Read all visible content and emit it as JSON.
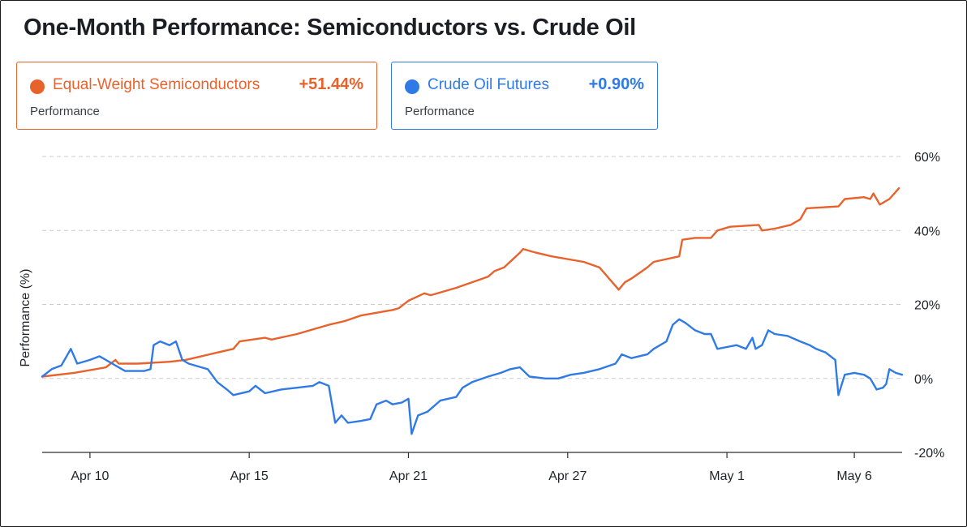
{
  "title": "One-Month Performance: Semiconductors vs. Crude Oil",
  "cards": {
    "semis": {
      "name": "Equal-Weight Semiconductors",
      "value": "+51.44%",
      "sub": "Performance",
      "color": "#e8622c"
    },
    "oil": {
      "name": "Crude Oil Futures",
      "value": "+0.90%",
      "sub": "Performance",
      "color": "#2f7ae5"
    }
  },
  "chart_data": {
    "type": "line",
    "ylabel": "Performance (%)",
    "xlabel": "",
    "ylim": [
      -20,
      60
    ],
    "yticks": [
      60,
      40,
      20,
      0,
      -20
    ],
    "ytick_labels": [
      "60%",
      "40%",
      "20%",
      "0%",
      "-20%"
    ],
    "xticks": [
      "Apr 10",
      "Apr 15",
      "Apr 21",
      "Apr 27",
      "May 1",
      "May 6"
    ],
    "xtick_positions": [
      1.5,
      6.5,
      11.5,
      16.5,
      21.5,
      25.5
    ],
    "xlim": [
      0,
      27
    ],
    "grid": "horizontal dashed",
    "y_axis_side": "right",
    "series": [
      {
        "name": "Equal-Weight Semiconductors",
        "color": "#e8622c",
        "points": [
          [
            0,
            0.5
          ],
          [
            1.0,
            1.5
          ],
          [
            2.0,
            3.0
          ],
          [
            2.3,
            5.0
          ],
          [
            2.4,
            4.0
          ],
          [
            3.0,
            4.0
          ],
          [
            4.0,
            4.5
          ],
          [
            4.5,
            5.0
          ],
          [
            5.0,
            6.0
          ],
          [
            5.5,
            7.0
          ],
          [
            6.0,
            8.0
          ],
          [
            6.2,
            10.0
          ],
          [
            7.0,
            11.0
          ],
          [
            7.2,
            10.5
          ],
          [
            8.0,
            12.0
          ],
          [
            9.0,
            14.5
          ],
          [
            9.5,
            15.5
          ],
          [
            10.0,
            17.0
          ],
          [
            11.0,
            18.5
          ],
          [
            11.2,
            19.0
          ],
          [
            11.5,
            21.0
          ],
          [
            12.0,
            23.0
          ],
          [
            12.2,
            22.5
          ],
          [
            13.0,
            24.5
          ],
          [
            14.0,
            27.5
          ],
          [
            14.2,
            29.0
          ],
          [
            14.5,
            30.0
          ],
          [
            15.0,
            34.0
          ],
          [
            15.1,
            35.0
          ],
          [
            15.5,
            34.0
          ],
          [
            16.0,
            33.0
          ],
          [
            17.0,
            31.5
          ],
          [
            17.5,
            30.0
          ],
          [
            18.0,
            25.0
          ],
          [
            18.1,
            24.0
          ],
          [
            18.3,
            26.0
          ],
          [
            18.5,
            27.0
          ],
          [
            19.0,
            30.0
          ],
          [
            19.2,
            31.5
          ],
          [
            20.0,
            33.0
          ],
          [
            20.1,
            37.5
          ],
          [
            20.5,
            38.0
          ],
          [
            21.0,
            38.0
          ],
          [
            21.2,
            40.0
          ],
          [
            21.6,
            41.0
          ],
          [
            22.5,
            41.5
          ],
          [
            22.6,
            40.0
          ],
          [
            23.0,
            40.5
          ],
          [
            23.5,
            41.5
          ],
          [
            23.8,
            43.0
          ],
          [
            24.0,
            46.0
          ],
          [
            25.0,
            46.5
          ],
          [
            25.2,
            48.5
          ],
          [
            25.8,
            49.0
          ],
          [
            26.0,
            48.5
          ],
          [
            26.1,
            50.0
          ],
          [
            26.3,
            47.0
          ],
          [
            26.6,
            48.5
          ],
          [
            26.9,
            51.4
          ]
        ]
      },
      {
        "name": "Crude Oil Futures",
        "color": "#2f7ae5",
        "points": [
          [
            0,
            0.5
          ],
          [
            0.3,
            2.5
          ],
          [
            0.6,
            3.5
          ],
          [
            0.9,
            8.0
          ],
          [
            1.1,
            4.0
          ],
          [
            1.5,
            5.0
          ],
          [
            1.8,
            6.0
          ],
          [
            2.2,
            4.0
          ],
          [
            2.6,
            2.0
          ],
          [
            3.2,
            2.0
          ],
          [
            3.4,
            2.5
          ],
          [
            3.5,
            9.0
          ],
          [
            3.7,
            10.0
          ],
          [
            4.0,
            9.0
          ],
          [
            4.2,
            10.0
          ],
          [
            4.4,
            5.0
          ],
          [
            4.6,
            4.0
          ],
          [
            5.0,
            3.0
          ],
          [
            5.2,
            2.5
          ],
          [
            5.5,
            -1.0
          ],
          [
            5.8,
            -3.0
          ],
          [
            6.0,
            -4.5
          ],
          [
            6.5,
            -3.5
          ],
          [
            6.7,
            -2.0
          ],
          [
            7.0,
            -4.0
          ],
          [
            7.5,
            -3.0
          ],
          [
            8.0,
            -2.5
          ],
          [
            8.5,
            -2.0
          ],
          [
            8.7,
            -1.0
          ],
          [
            9.0,
            -2.0
          ],
          [
            9.2,
            -12.0
          ],
          [
            9.4,
            -10.0
          ],
          [
            9.6,
            -12.0
          ],
          [
            10.0,
            -11.5
          ],
          [
            10.3,
            -11.0
          ],
          [
            10.5,
            -7.0
          ],
          [
            10.8,
            -6.0
          ],
          [
            11.0,
            -7.0
          ],
          [
            11.3,
            -6.5
          ],
          [
            11.5,
            -5.5
          ],
          [
            11.6,
            -15.0
          ],
          [
            11.8,
            -10.0
          ],
          [
            12.1,
            -9.0
          ],
          [
            12.5,
            -6.0
          ],
          [
            13.0,
            -5.0
          ],
          [
            13.2,
            -2.5
          ],
          [
            13.5,
            -1.0
          ],
          [
            14.0,
            0.5
          ],
          [
            14.4,
            1.5
          ],
          [
            14.7,
            2.5
          ],
          [
            15.0,
            3.0
          ],
          [
            15.3,
            0.5
          ],
          [
            15.8,
            0.0
          ],
          [
            16.2,
            0.0
          ],
          [
            16.6,
            1.0
          ],
          [
            17.0,
            1.5
          ],
          [
            17.5,
            2.5
          ],
          [
            18.0,
            4.0
          ],
          [
            18.2,
            6.5
          ],
          [
            18.5,
            5.5
          ],
          [
            19.0,
            6.5
          ],
          [
            19.2,
            8.0
          ],
          [
            19.6,
            10.0
          ],
          [
            19.8,
            14.5
          ],
          [
            20.0,
            16.0
          ],
          [
            20.2,
            15.0
          ],
          [
            20.5,
            13.0
          ],
          [
            20.8,
            12.0
          ],
          [
            21.0,
            12.0
          ],
          [
            21.2,
            8.0
          ],
          [
            21.5,
            8.5
          ],
          [
            21.8,
            9.0
          ],
          [
            22.1,
            8.0
          ],
          [
            22.3,
            11.0
          ],
          [
            22.4,
            8.0
          ],
          [
            22.6,
            9.0
          ],
          [
            22.8,
            13.0
          ],
          [
            23.0,
            12.0
          ],
          [
            23.4,
            11.5
          ],
          [
            23.8,
            10.0
          ],
          [
            24.1,
            9.0
          ],
          [
            24.3,
            8.0
          ],
          [
            24.6,
            7.0
          ],
          [
            24.9,
            5.0
          ],
          [
            25.0,
            -4.5
          ],
          [
            25.2,
            1.0
          ],
          [
            25.5,
            1.5
          ],
          [
            25.8,
            1.0
          ],
          [
            26.0,
            0.0
          ],
          [
            26.2,
            -3.0
          ],
          [
            26.4,
            -2.5
          ],
          [
            26.5,
            -1.5
          ],
          [
            26.6,
            2.5
          ],
          [
            26.8,
            1.5
          ],
          [
            27.0,
            1.0
          ]
        ]
      }
    ]
  }
}
